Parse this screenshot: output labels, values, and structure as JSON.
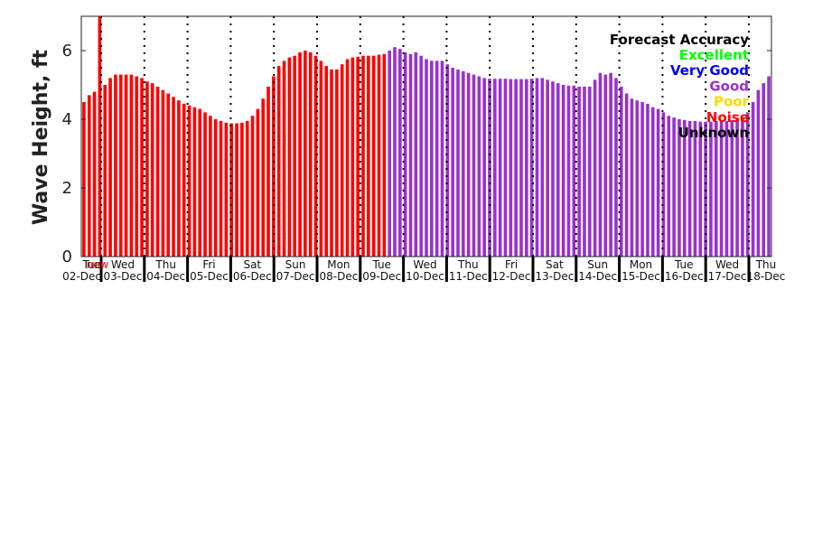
{
  "chart_data": {
    "type": "bar",
    "ylabel": "Wave Height, ft",
    "ylim": [
      0,
      7
    ],
    "yticks": [
      0,
      2,
      4,
      6
    ],
    "now_label": "now",
    "day_labels": [
      {
        "day": "Tue",
        "date": "02-Dec"
      },
      {
        "day": "Wed",
        "date": "03-Dec"
      },
      {
        "day": "Thu",
        "date": "04-Dec"
      },
      {
        "day": "Fri",
        "date": "05-Dec"
      },
      {
        "day": "Sat",
        "date": "06-Dec"
      },
      {
        "day": "Sun",
        "date": "07-Dec"
      },
      {
        "day": "Mon",
        "date": "08-Dec"
      },
      {
        "day": "Tue",
        "date": "09-Dec"
      },
      {
        "day": "Wed",
        "date": "10-Dec"
      },
      {
        "day": "Thu",
        "date": "11-Dec"
      },
      {
        "day": "Fri",
        "date": "12-Dec"
      },
      {
        "day": "Sat",
        "date": "13-Dec"
      },
      {
        "day": "Sun",
        "date": "14-Dec"
      },
      {
        "day": "Mon",
        "date": "15-Dec"
      },
      {
        "day": "Tue",
        "date": "16-Dec"
      },
      {
        "day": "Wed",
        "date": "17-Dec"
      },
      {
        "day": "Thu",
        "date": "18-Dec"
      }
    ],
    "legend": {
      "title": "Forecast Accuracy",
      "entries": [
        {
          "label": "Excellent",
          "color": "#00ff00"
        },
        {
          "label": "Very Good",
          "color": "#0000ff"
        },
        {
          "label": "Good",
          "color": "#9932cc"
        },
        {
          "label": "Poor",
          "color": "#ffd700"
        },
        {
          "label": "Noise",
          "color": "#ff0000"
        },
        {
          "label": "Unknown",
          "color": "#000000"
        }
      ]
    },
    "accuracy_color_by_index": {
      "0": "#ff0000",
      "1": "#9932cc"
    },
    "series": [
      {
        "color": "#ff0000",
        "values": [
          4.5,
          4.7,
          4.8,
          7.0,
          5.0,
          5.2,
          5.3,
          5.3,
          5.3,
          5.3,
          5.25,
          5.2,
          5.1,
          5.05,
          4.95,
          4.85,
          4.75,
          4.65,
          4.55,
          4.45,
          4.4,
          4.35,
          4.3,
          4.2,
          4.1,
          4.0,
          3.95,
          3.9,
          3.88,
          3.88,
          3.9,
          3.95,
          4.1,
          4.3,
          4.6,
          4.95,
          5.25,
          5.55,
          5.7,
          5.8,
          5.85,
          5.95,
          6.0,
          5.95,
          5.85,
          5.7,
          5.55,
          5.45,
          5.45,
          5.6,
          5.75,
          5.8,
          5.82,
          5.85,
          5.85,
          5.85,
          5.88,
          5.9
        ]
      },
      {
        "color": "#9932cc",
        "values": [
          6.0,
          6.1,
          6.05,
          5.95,
          5.9,
          5.95,
          5.85,
          5.75,
          5.7,
          5.7,
          5.7,
          5.6,
          5.5,
          5.45,
          5.4,
          5.35,
          5.3,
          5.25,
          5.2,
          5.18,
          5.18,
          5.18,
          5.18,
          5.17,
          5.17,
          5.17,
          5.17,
          5.18,
          5.2,
          5.2,
          5.15,
          5.1,
          5.05,
          5.0,
          4.98,
          4.98,
          4.95,
          4.95,
          4.95,
          5.15,
          5.35,
          5.3,
          5.35,
          5.2,
          4.95,
          4.75,
          4.6,
          4.55,
          4.5,
          4.45,
          4.35,
          4.3,
          4.2,
          4.1,
          4.05,
          4.0,
          3.98,
          3.95,
          3.95,
          3.93,
          3.93,
          3.93,
          3.95,
          3.95,
          3.95,
          3.97,
          4.0,
          4.05,
          4.2,
          4.5,
          4.85,
          5.05,
          5.25
        ]
      }
    ]
  }
}
